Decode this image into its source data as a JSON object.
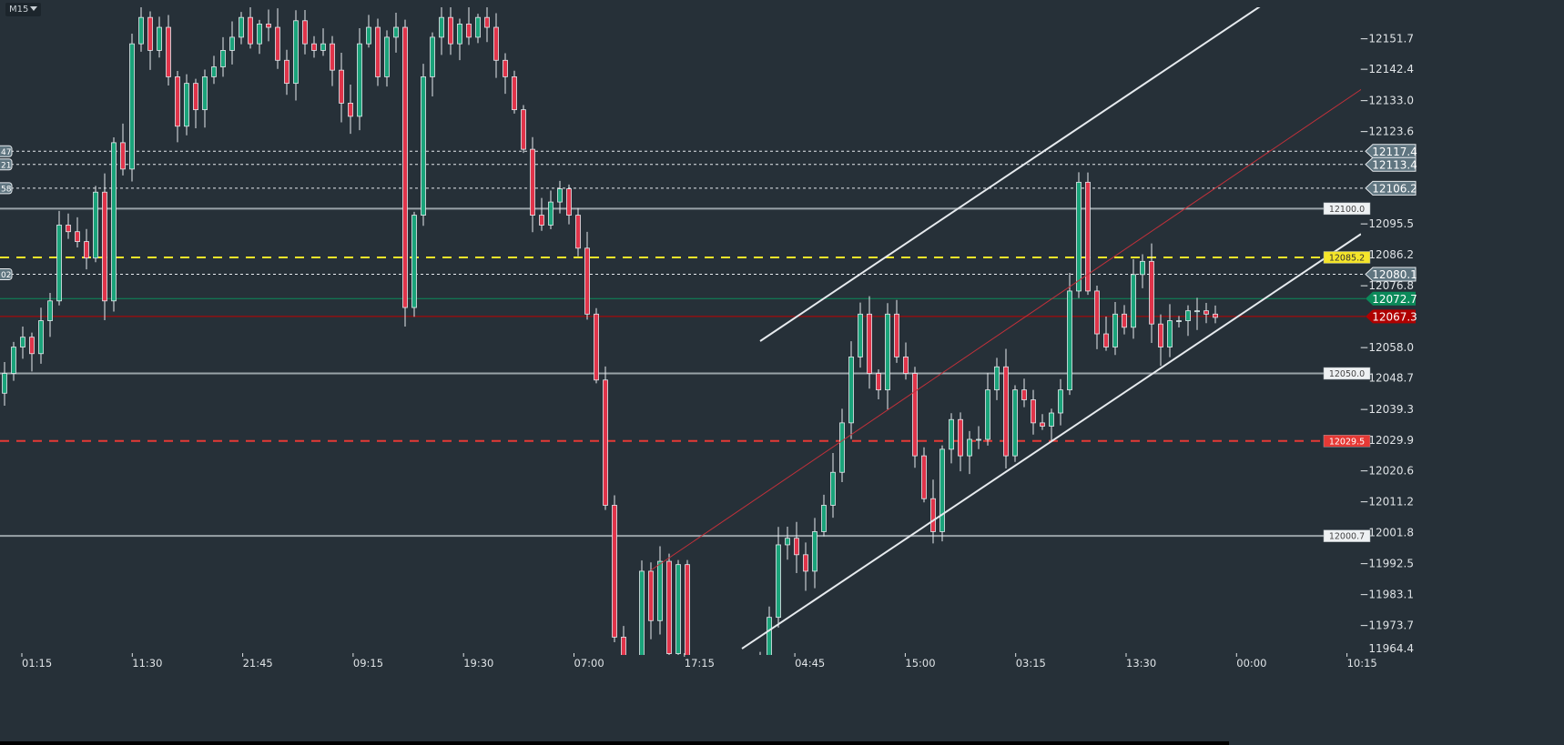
{
  "toolbar": {
    "timeframe": "M15",
    "timeframe_icon": "caret-down-icon"
  },
  "chart_data": {
    "type": "candlestick",
    "title": "",
    "timeframe": "M15",
    "y_range": [
      11964.4,
      12151.7
    ],
    "y_ticks": [
      "12151.7",
      "12142.4",
      "12133.0",
      "12123.6",
      "12095.5",
      "12086.2",
      "12076.8",
      "12058.0",
      "12048.7",
      "12039.3",
      "12029.9",
      "12020.6",
      "12011.2",
      "12001.8",
      "11992.5",
      "11983.1",
      "11973.7",
      "11964.4"
    ],
    "x_ticks": [
      "01:15",
      "11:30",
      "21:45",
      "09:15",
      "19:30",
      "07:00",
      "17:15",
      "04:45",
      "15:00",
      "03:15",
      "13:30",
      "00:00",
      "10:15"
    ],
    "close": [
      12050,
      12058,
      12061,
      12056,
      12066,
      12072,
      12095,
      12093,
      12090,
      12085,
      12105,
      12072,
      12120,
      12112,
      12150,
      12158,
      12148,
      12155,
      12140,
      12125,
      12138,
      12130,
      12140,
      12143,
      12148,
      12152,
      12158,
      12150,
      12156,
      12155,
      12145,
      12138,
      12157,
      12150,
      12148,
      12150,
      12142,
      12132,
      12128,
      12150,
      12155,
      12140,
      12152,
      12155,
      12070,
      12098,
      12140,
      12152,
      12158,
      12150,
      12156,
      12152,
      12158,
      12155,
      12145,
      12140,
      12130,
      12118,
      12098,
      12095,
      12102,
      12106,
      12098,
      12088,
      12068,
      12048,
      12010,
      11970,
      11962,
      11958,
      11990,
      11975,
      11993,
      11965,
      11992,
      11955,
      11950,
      11948,
      11952,
      11955,
      11950,
      11945,
      11955,
      11960,
      11976,
      11998,
      12000,
      11995,
      11990,
      12002,
      12010,
      12020,
      12035,
      12055,
      12068,
      12050,
      12045,
      12068,
      12055,
      12050,
      12025,
      12012,
      12002,
      12027,
      12036,
      12025,
      12030,
      12030,
      12045,
      12052,
      12025,
      12045,
      12042,
      12035,
      12034,
      12038,
      12045,
      12075,
      12108,
      12075,
      12062,
      12058,
      12068,
      12064,
      12080,
      12084,
      12065,
      12058,
      12066,
      12066,
      12069,
      12069,
      12068,
      12067
    ],
    "colors": {
      "bull": "#1aa37a",
      "bear": "#e0344a",
      "wick": "#e6eaee",
      "background": "#263038"
    },
    "grid": false,
    "levels": [
      {
        "price": 12100.0,
        "label": "12100.0",
        "style": "solid",
        "color": "#9aa3a8",
        "tag": "box-light"
      },
      {
        "price": 12050.0,
        "label": "12050.0",
        "style": "solid",
        "color": "#9aa3a8",
        "tag": "box-light"
      },
      {
        "price": 12000.7,
        "label": "12000.7",
        "style": "solid",
        "color": "#9aa3a8",
        "tag": "box-light"
      },
      {
        "price": 12085.2,
        "label": "12085.2",
        "style": "dashed",
        "color": "#f5e52a",
        "tag": "box-yellow"
      },
      {
        "price": 12029.5,
        "label": "12029.5",
        "style": "dashed",
        "color": "#e53935",
        "tag": "box-red"
      },
      {
        "price": 12117.4,
        "label": "12117.4",
        "style": "dotted",
        "color": "#e6eaee",
        "tag": "arrow-grey",
        "left_label": "47"
      },
      {
        "price": 12113.4,
        "label": "12113.4",
        "style": "dotted",
        "color": "#e6eaee",
        "tag": "arrow-grey",
        "left_label": "21"
      },
      {
        "price": 12106.2,
        "label": "12106.2",
        "style": "dotted",
        "color": "#e6eaee",
        "tag": "arrow-grey",
        "left_label": "58"
      },
      {
        "price": 12080.1,
        "label": "12080.1",
        "style": "dotted",
        "color": "#e6eaee",
        "tag": "arrow-grey",
        "left_label": "02"
      },
      {
        "price": 12072.7,
        "label": "12072.7",
        "style": "solid",
        "color": "#0b8a5a",
        "tag": "arrow-green"
      },
      {
        "price": 12067.3,
        "label": "12067.3",
        "style": "solid",
        "color": "#c00000",
        "tag": "arrow-red"
      }
    ],
    "trendlines": [
      {
        "name": "channel-upper",
        "color": "#e6eaee",
        "from": {
          "bar": 83,
          "price": 12059.8
        },
        "to": {
          "bar": 138,
          "price": 12161.5
        }
      },
      {
        "name": "channel-lower",
        "color": "#e6eaee",
        "from": {
          "bar": 81,
          "price": 11966.5
        },
        "to": {
          "bar": 149,
          "price": 12092.3
        }
      },
      {
        "name": "red-trendline",
        "color": "#c0303a",
        "from": {
          "bar": 71,
          "price": 11990.3
        },
        "to": {
          "bar": 150,
          "price": 12138.0
        }
      }
    ]
  }
}
